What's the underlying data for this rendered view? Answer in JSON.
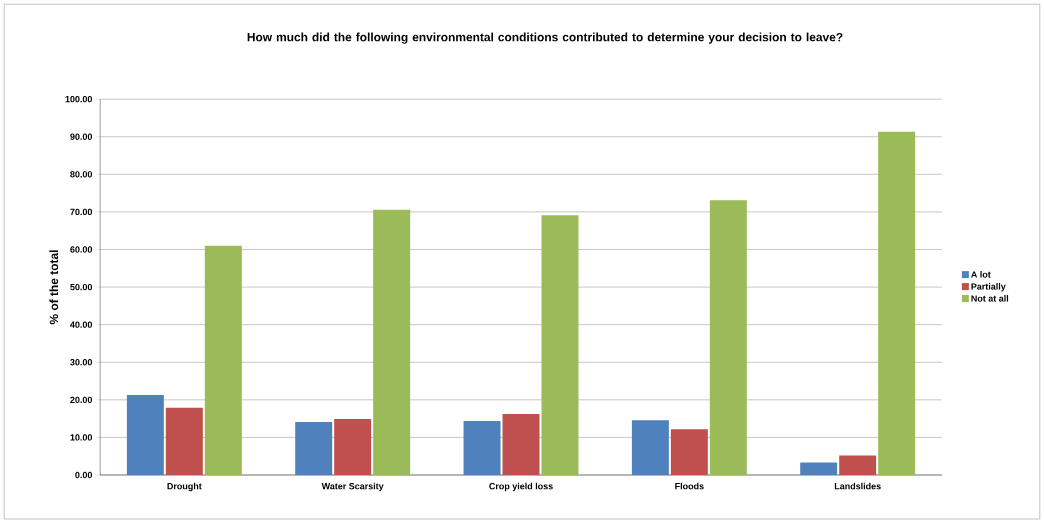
{
  "chart_data": {
    "type": "bar",
    "title": "How much did the following environmental conditions contributed to determine your decision to leave?",
    "ylabel": "% of the total",
    "categories": [
      "Drought",
      "Water Scarsity",
      "Crop yield loss",
      "Floods",
      "Landslides"
    ],
    "series": [
      {
        "name": "A lot",
        "color": "#4f81bd",
        "values": [
          21.3,
          14.1,
          14.4,
          14.6,
          3.3
        ]
      },
      {
        "name": "Partially",
        "color": "#c0504d",
        "values": [
          17.9,
          14.9,
          16.2,
          12.2,
          5.2
        ]
      },
      {
        "name": "Not at all",
        "color": "#9bbb59",
        "values": [
          61.0,
          70.6,
          69.1,
          73.1,
          91.3
        ]
      }
    ],
    "ylim": [
      0,
      100
    ],
    "yticks": [
      {
        "value": 0,
        "label": "0.00"
      },
      {
        "value": 10,
        "label": "10.00"
      },
      {
        "value": 20,
        "label": "20.00"
      },
      {
        "value": 30,
        "label": "30.00"
      },
      {
        "value": 40,
        "label": "40.00"
      },
      {
        "value": 50,
        "label": "50.00"
      },
      {
        "value": 60,
        "label": "60.00"
      },
      {
        "value": 70,
        "label": "70.00"
      },
      {
        "value": 80,
        "label": "80.00"
      },
      {
        "value": 90,
        "label": "90.00"
      },
      {
        "value": 100,
        "label": "100.00"
      }
    ],
    "grid": "y",
    "legend": "right"
  }
}
